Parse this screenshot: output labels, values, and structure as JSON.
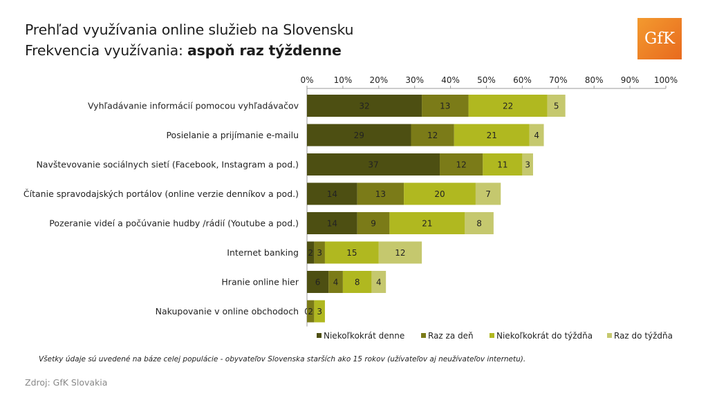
{
  "header": {
    "title_line1": "Prehľad využívania online služieb na Slovensku",
    "title_line2_prefix": "Frekvencia využívania: ",
    "title_line2_emphasis": "aspoň raz týždenne"
  },
  "logo": {
    "text": "GfK",
    "color": "#ec7a22"
  },
  "footnote": "Všetky údaje sú uvedené na báze celej populácie - obyvateľov Slovenska starších ako 15 rokov (užívateľov  aj neužívateľov internetu).",
  "source": "Zdroj: GfK Slovakia",
  "chart_data": {
    "type": "bar",
    "orientation": "horizontal",
    "stacked": true,
    "xlim": [
      0,
      100
    ],
    "x_ticks": [
      "0%",
      "10%",
      "20%",
      "30%",
      "40%",
      "50%",
      "60%",
      "70%",
      "80%",
      "90%",
      "100%"
    ],
    "x_tick_values": [
      0,
      10,
      20,
      30,
      40,
      50,
      60,
      70,
      80,
      90,
      100
    ],
    "axis_position": "top",
    "legend_position": "bottom-right",
    "categories": [
      "Vyhľadávanie informácií pomocou vyhľadávačov",
      "Posielanie a prijímanie e-mailu",
      "Navštevovanie sociálnych sietí (Facebook, Instagram a pod.)",
      "Čítanie spravodajských portálov (online verzie denníkov a pod.)",
      "Pozeranie videí a počúvanie hudby /rádií (Youtube a pod.)",
      "Internet banking",
      "Hranie online hier",
      "Nakupovanie v online obchodoch"
    ],
    "series": [
      {
        "name": "Niekoľkokrát denne",
        "color": "#4d4f12",
        "values": [
          32,
          29,
          37,
          14,
          14,
          2,
          6,
          0
        ]
      },
      {
        "name": "Raz za deň",
        "color": "#7b7b18",
        "values": [
          13,
          12,
          12,
          13,
          9,
          3,
          4,
          2
        ]
      },
      {
        "name": "Niekoľkokrát do týždňa",
        "color": "#b0b820",
        "values": [
          22,
          21,
          11,
          20,
          21,
          15,
          8,
          3
        ]
      },
      {
        "name": "Raz do týždňa",
        "color": "#c5c86e",
        "values": [
          5,
          4,
          3,
          7,
          8,
          12,
          4,
          0
        ]
      }
    ]
  }
}
